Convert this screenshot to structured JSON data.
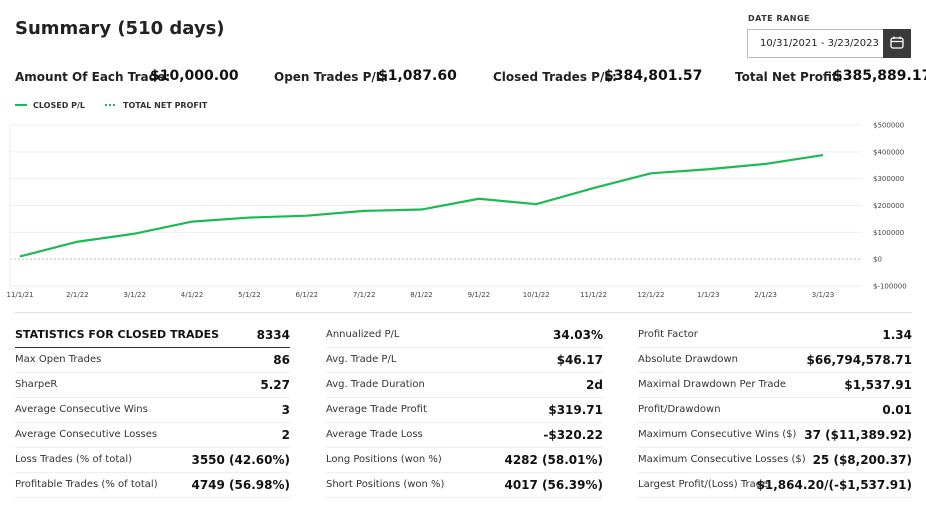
{
  "header": {
    "title": "Summary (510 days)",
    "date_range_label": "DATE RANGE",
    "date_range": "10/31/2021 - 3/23/2023"
  },
  "summary": [
    {
      "label": "Amount Of Each Trade:",
      "value": "$10,000.00"
    },
    {
      "label": "Open Trades P/L:",
      "value": "$1,087.60"
    },
    {
      "label": "Closed Trades P/L:",
      "value": "$384,801.57"
    },
    {
      "label": "Total Net Profit:",
      "value": "$385,889.17"
    }
  ],
  "chart_data": {
    "type": "line",
    "categories": [
      "11/1/21",
      "2/1/22",
      "3/1/22",
      "4/1/22",
      "5/1/22",
      "6/1/22",
      "7/1/22",
      "8/1/22",
      "9/1/22",
      "10/1/22",
      "11/1/22",
      "12/1/22",
      "1/1/23",
      "2/1/23",
      "3/1/23"
    ],
    "series": [
      {
        "name": "CLOSED P/L",
        "color": "#1db954",
        "style": "solid",
        "values": [
          10000,
          65000,
          95000,
          140000,
          155000,
          162000,
          180000,
          185000,
          225000,
          205000,
          265000,
          320000,
          335000,
          355000,
          388000
        ]
      },
      {
        "name": "TOTAL NET PROFIT",
        "color": "#1db954",
        "style": "dotted",
        "values": [
          10000,
          65000,
          95000,
          140000,
          155000,
          162000,
          180000,
          185000,
          225000,
          205000,
          265000,
          320000,
          335000,
          355000,
          388000
        ]
      }
    ],
    "ylim": [
      -100000,
      500000
    ],
    "yticks": [
      {
        "value": -100000,
        "label": "$-100000"
      },
      {
        "value": 0,
        "label": "$0"
      },
      {
        "value": 100000,
        "label": "$100000"
      },
      {
        "value": 200000,
        "label": "$200000"
      },
      {
        "value": 300000,
        "label": "$300000"
      },
      {
        "value": 400000,
        "label": "$400000"
      },
      {
        "value": 500000,
        "label": "$500000"
      }
    ],
    "grid": true
  },
  "stats": {
    "columns": [
      {
        "rows": [
          {
            "label": "STATISTICS FOR CLOSED TRADES",
            "value": "8334"
          },
          {
            "label": "Max Open Trades",
            "value": "86"
          },
          {
            "label": "SharpeR",
            "value": "5.27"
          },
          {
            "label": "Average Consecutive Wins",
            "value": "3"
          },
          {
            "label": "Average Consecutive Losses",
            "value": "2"
          },
          {
            "label": "Loss Trades (% of total)",
            "value": "3550 (42.60%)"
          },
          {
            "label": "Profitable Trades (% of total)",
            "value": "4749 (56.98%)"
          }
        ]
      },
      {
        "rows": [
          {
            "label": "Annualized P/L",
            "value": "34.03%"
          },
          {
            "label": "Avg. Trade P/L",
            "value": "$46.17"
          },
          {
            "label": "Avg. Trade Duration",
            "value": "2d"
          },
          {
            "label": "Average Trade Profit",
            "value": "$319.71"
          },
          {
            "label": "Average Trade Loss",
            "value": "-$320.22"
          },
          {
            "label": "Long Positions (won %)",
            "value": "4282 (58.01%)"
          },
          {
            "label": "Short Positions (won %)",
            "value": "4017 (56.39%)"
          }
        ]
      },
      {
        "rows": [
          {
            "label": "Profit Factor",
            "value": "1.34"
          },
          {
            "label": "Absolute Drawdown",
            "value": "$66,794,578.71"
          },
          {
            "label": "Maximal Drawdown Per Trade",
            "value": "$1,537.91"
          },
          {
            "label": "Profit/Drawdown",
            "value": "0.01"
          },
          {
            "label": "Maximum Consecutive Wins ($)",
            "value": "37 ($11,389.92)"
          },
          {
            "label": "Maximum Consecutive Losses ($)",
            "value": "25 ($8,200.37)"
          },
          {
            "label": "Largest Profit/(Loss) Trade",
            "value": "$1,864.20/(-$1,537.91)"
          }
        ]
      }
    ]
  }
}
